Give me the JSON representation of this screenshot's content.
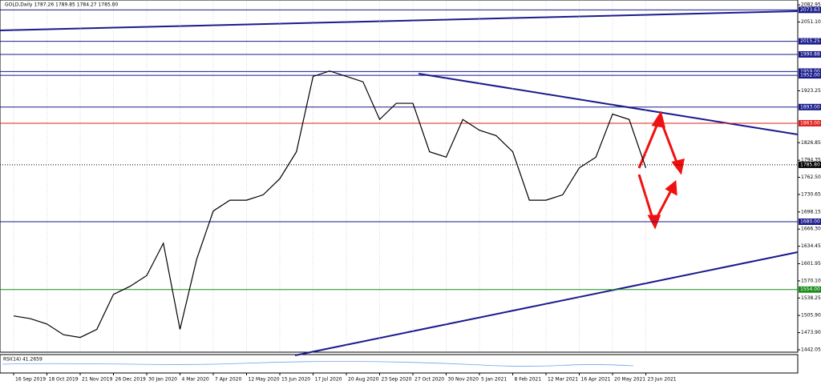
{
  "header": {
    "text": "GOLD,Daily  1787.26 1789.85 1784.27 1785.80"
  },
  "chart_data": {
    "type": "line",
    "grid": true,
    "color": "#000000",
    "categories": [
      "16 Sep 2019",
      null,
      "18 Oct 2019",
      null,
      "21 Nov 2019",
      null,
      "26 Dec 2019",
      null,
      "30 Jan 2020",
      null,
      "4 Mar 2020",
      null,
      "7 Apr 2020",
      null,
      "12 May 2020",
      null,
      "15 Jun 2020",
      null,
      "17 Jul 2020",
      null,
      "20 Aug 2020",
      null,
      "23 Sep 2020",
      null,
      "27 Oct 2020",
      null,
      "30 Nov 2020",
      null,
      "5 Jan 2021",
      null,
      "8 Feb 2021",
      null,
      "12 Mar 2021",
      null,
      "16 Apr 2021",
      null,
      "20 May 2021",
      null,
      "23 Jun 2021",
      null
    ],
    "values": [
      1505,
      1500,
      1490,
      1470,
      1465,
      1480,
      1545,
      1560,
      1580,
      1640,
      1480,
      1610,
      1700,
      1720,
      1720,
      1730,
      1760,
      1810,
      1950,
      1960,
      1950,
      1940,
      1870,
      1900,
      1900,
      1810,
      1800,
      1870,
      1850,
      1840,
      1810,
      1720,
      1720,
      1730,
      1780,
      1800,
      1880,
      1870,
      1780,
      null
    ],
    "ylim": [
      1437.6,
      2089.0
    ],
    "yticks": [
      {
        "value": 2082.95,
        "label": "2082.95"
      },
      {
        "value": 2051.1,
        "label": "2051.10"
      },
      {
        "value": 1923.25,
        "label": "1923.25"
      },
      {
        "value": 1826.85,
        "label": "1826.85"
      },
      {
        "value": 1794.35,
        "label": "1794.35"
      },
      {
        "value": 1762.5,
        "label": "1762.50"
      },
      {
        "value": 1730.65,
        "label": "1730.65"
      },
      {
        "value": 1698.15,
        "label": "1698.15"
      },
      {
        "value": 1666.3,
        "label": "1666.30"
      },
      {
        "value": 1634.45,
        "label": "1634.45"
      },
      {
        "value": 1601.95,
        "label": "1601.95"
      },
      {
        "value": 1570.1,
        "label": "1570.10"
      },
      {
        "value": 1538.25,
        "label": "1538.25"
      },
      {
        "value": 1505.9,
        "label": "1505.90"
      },
      {
        "value": 1473.9,
        "label": "1473.90"
      },
      {
        "value": 1442.05,
        "label": "1442.05"
      }
    ],
    "levels": [
      {
        "value": 2073.63,
        "label": "2073.63",
        "color": "#1a1a8c"
      },
      {
        "value": 2015.25,
        "label": "2015.25",
        "color": "#1a1a8c"
      },
      {
        "value": 1990.88,
        "label": "1990.88",
        "color": "#1a1a8c"
      },
      {
        "value": 1959.0,
        "label": "1959.00",
        "color": "#1a1a8c"
      },
      {
        "value": 1952.0,
        "label": "1952.00",
        "color": "#1a1a8c"
      },
      {
        "value": 1893.0,
        "label": "1893.00",
        "color": "#1a1a8c"
      },
      {
        "value": 1863.0,
        "label": "1863.00",
        "color": "#e02020"
      },
      {
        "value": 1785.8,
        "label": "1785.80",
        "color": "#000000"
      },
      {
        "value": 1680.0,
        "label": "1680.00",
        "color": "#1a1a8c"
      },
      {
        "value": 1554.0,
        "label": "1554.00",
        "color": "#1a8c1a"
      }
    ],
    "rsi_title": "RSI(14) 41.2659"
  }
}
